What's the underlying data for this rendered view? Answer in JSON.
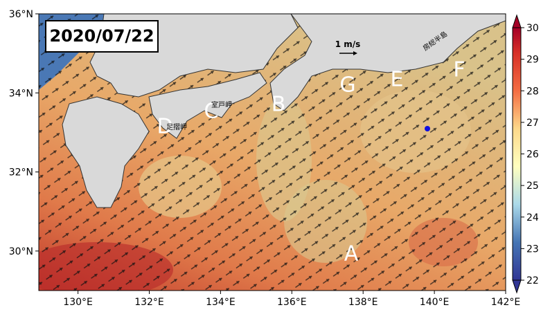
{
  "title": "2020/07/22",
  "map": {
    "xlim": [
      128.9,
      142
    ],
    "ylim": [
      29,
      36
    ],
    "xticks": [
      {
        "value": 130,
        "label": "130°E"
      },
      {
        "value": 132,
        "label": "132°E"
      },
      {
        "value": 134,
        "label": "134°E"
      },
      {
        "value": 136,
        "label": "136°E"
      },
      {
        "value": 138,
        "label": "138°E"
      },
      {
        "value": 140,
        "label": "140°E"
      },
      {
        "value": 142,
        "label": "142°E"
      }
    ],
    "yticks": [
      {
        "value": 30,
        "label": "30°N"
      },
      {
        "value": 32,
        "label": "32°N"
      },
      {
        "value": 34,
        "label": "34°N"
      },
      {
        "value": 36,
        "label": "36°N"
      }
    ],
    "point_labels": [
      "A",
      "B",
      "C",
      "D",
      "E",
      "F",
      "G"
    ],
    "place_names": [
      "室戸\n岬",
      "足摺\n岬",
      "房総半島"
    ],
    "scale_label": "1 m/s"
  },
  "colorbar": {
    "clim": [
      22,
      30
    ],
    "ticks": [
      22,
      23,
      24,
      25,
      26,
      27,
      28,
      29,
      30
    ]
  }
}
